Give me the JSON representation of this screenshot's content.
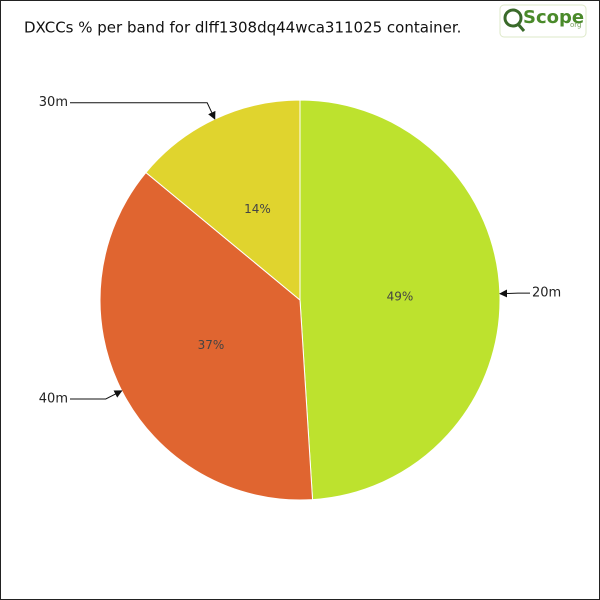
{
  "chart_data": {
    "type": "pie",
    "title": "DXCCs % per band for dlff1308dq44wca311025 container.",
    "logo": "Scope",
    "logo_suffix": "org",
    "categories": [
      "20m",
      "40m",
      "30m"
    ],
    "values": [
      49,
      37,
      14
    ],
    "value_labels": [
      "49%",
      "37%",
      "14%"
    ],
    "colors": [
      "#bde22e",
      "#e06530",
      "#e0d42e"
    ]
  }
}
